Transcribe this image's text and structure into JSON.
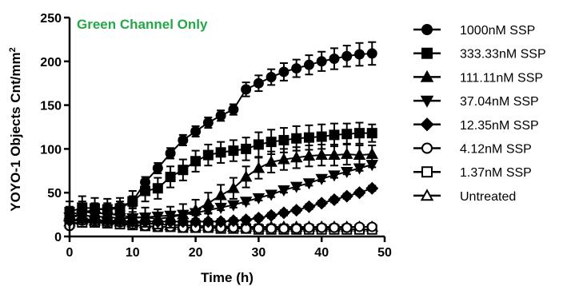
{
  "chart_data": {
    "type": "line",
    "title": "",
    "annotation": "Green Channel Only",
    "annotation_color": "#22a846",
    "xlabel": "Time (h)",
    "ylabel_main": "YOYO-1 Objects Cnt/mm",
    "ylabel_sup": "2",
    "xlim": [
      0,
      50
    ],
    "ylim": [
      0,
      250
    ],
    "xticks": [
      0,
      10,
      20,
      30,
      40,
      50
    ],
    "yticks": [
      0,
      50,
      100,
      150,
      200,
      250
    ],
    "grid": false,
    "legend_position": "right",
    "x": [
      0,
      2,
      4,
      6,
      8,
      10,
      12,
      14,
      16,
      18,
      20,
      22,
      24,
      26,
      28,
      30,
      32,
      34,
      36,
      38,
      40,
      42,
      44,
      46,
      48
    ],
    "series": [
      {
        "name": "1000nM SSP",
        "marker": "circle-filled",
        "values": [
          20,
          28,
          30,
          32,
          34,
          40,
          62,
          78,
          95,
          110,
          120,
          130,
          138,
          145,
          168,
          175,
          182,
          188,
          192,
          196,
          200,
          203,
          206,
          208,
          209
        ],
        "error": [
          5,
          6,
          6,
          6,
          6,
          6,
          6,
          6,
          6,
          6,
          6,
          6,
          6,
          6,
          8,
          9,
          9,
          10,
          10,
          11,
          11,
          12,
          12,
          13,
          13
        ]
      },
      {
        "name": "333.33nM SSP",
        "marker": "square-filled",
        "values": [
          28,
          33,
          32,
          31,
          32,
          40,
          52,
          55,
          68,
          76,
          86,
          93,
          96,
          98,
          100,
          105,
          108,
          110,
          112,
          113,
          114,
          116,
          117,
          118,
          118
        ],
        "error": [
          12,
          13,
          12,
          12,
          12,
          12,
          12,
          12,
          12,
          12,
          12,
          12,
          12,
          12,
          13,
          14,
          14,
          14,
          14,
          14,
          14,
          13,
          12,
          12,
          10
        ]
      },
      {
        "name": "111.11nM SSP",
        "marker": "triangle-up-filled",
        "values": [
          25,
          28,
          27,
          26,
          24,
          22,
          22,
          20,
          22,
          25,
          30,
          38,
          47,
          55,
          68,
          78,
          85,
          88,
          90,
          92,
          93,
          93,
          94,
          93,
          94
        ],
        "error": [
          9,
          12,
          11,
          10,
          10,
          10,
          11,
          11,
          12,
          12,
          12,
          12,
          12,
          12,
          12,
          12,
          12,
          12,
          12,
          12,
          12,
          12,
          12,
          11,
          10
        ]
      },
      {
        "name": "37.04nM SSP",
        "marker": "triangle-down-filled",
        "values": [
          22,
          24,
          23,
          22,
          21,
          21,
          22,
          23,
          24,
          25,
          27,
          30,
          33,
          36,
          40,
          44,
          48,
          53,
          57,
          61,
          66,
          70,
          74,
          78,
          82
        ],
        "error": [
          3,
          3,
          3,
          3,
          3,
          3,
          3,
          3,
          3,
          3,
          3,
          3,
          3,
          3,
          3,
          3,
          3,
          3,
          3,
          3,
          3,
          3,
          3,
          3,
          3
        ]
      },
      {
        "name": "12.35nM SSP",
        "marker": "diamond-filled",
        "values": [
          18,
          20,
          19,
          18,
          18,
          17,
          17,
          17,
          17,
          17,
          17,
          17,
          17,
          18,
          19,
          21,
          24,
          27,
          30,
          34,
          38,
          42,
          46,
          50,
          55
        ],
        "error": [
          3,
          3,
          3,
          3,
          3,
          3,
          3,
          3,
          3,
          3,
          3,
          3,
          3,
          3,
          3,
          3,
          3,
          3,
          3,
          3,
          3,
          3,
          3,
          3,
          3
        ]
      },
      {
        "name": "4.12nM SSP",
        "marker": "circle-open",
        "values": [
          12,
          18,
          17,
          16,
          16,
          14,
          12,
          11,
          11,
          10,
          10,
          10,
          10,
          10,
          9,
          9,
          9,
          9,
          9,
          10,
          10,
          10,
          10,
          11,
          11
        ],
        "error": [
          3,
          3,
          3,
          3,
          3,
          3,
          3,
          3,
          3,
          3,
          3,
          3,
          3,
          3,
          3,
          3,
          3,
          3,
          3,
          3,
          3,
          3,
          3,
          3,
          3
        ]
      },
      {
        "name": "1.37nM SSP",
        "marker": "square-open",
        "values": [
          15,
          16,
          16,
          15,
          14,
          13,
          12,
          11,
          11,
          10,
          10,
          10,
          9,
          9,
          9,
          8,
          8,
          8,
          8,
          8,
          8,
          8,
          8,
          8,
          8
        ],
        "error": [
          3,
          3,
          3,
          3,
          3,
          3,
          3,
          3,
          3,
          3,
          3,
          3,
          3,
          3,
          3,
          3,
          3,
          3,
          3,
          3,
          3,
          3,
          3,
          3,
          3
        ]
      },
      {
        "name": "Untreated",
        "marker": "triangle-up-open",
        "values": [
          17,
          19,
          18,
          18,
          17,
          16,
          15,
          14,
          13,
          13,
          12,
          12,
          12,
          11,
          11,
          11,
          11,
          11,
          11,
          11,
          11,
          11,
          11,
          11,
          11
        ],
        "error": [
          3,
          3,
          3,
          3,
          3,
          3,
          3,
          3,
          3,
          3,
          3,
          3,
          3,
          3,
          3,
          3,
          3,
          3,
          3,
          3,
          3,
          3,
          3,
          3,
          3
        ]
      }
    ]
  }
}
